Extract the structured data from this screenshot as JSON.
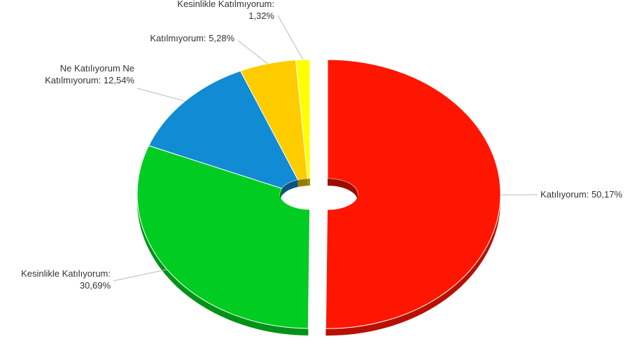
{
  "chart_data": {
    "type": "pie",
    "title": "",
    "donut": true,
    "three_d": true,
    "legend": "none",
    "slices": [
      {
        "name": "Katılıyorum",
        "value": 50.17,
        "label": "Katılıyorum: 50,17%",
        "color": "#ff1600",
        "exploded": true
      },
      {
        "name": "Kesinlikle Katılıyorum",
        "value": 30.69,
        "label": "Kesinlikle Katılıyorum:\n30,69%",
        "color": "#00cc22",
        "exploded": false
      },
      {
        "name": "Ne Katılıyorum Ne Katılmıyorum",
        "value": 12.54,
        "label": "Ne Katılıyorum Ne\nKatılmıyorum: 12,54%",
        "color": "#108bd4",
        "exploded": false
      },
      {
        "name": "Katılmıyorum",
        "value": 5.28,
        "label": "Katılmıyorum: 5,28%",
        "color": "#ffcc00",
        "exploded": false
      },
      {
        "name": "Kesinlikle Katılmıyorum",
        "value": 1.32,
        "label": "Kesinlikle Katılmıyorum:\n1,32%",
        "color": "#ffff00",
        "exploded": false
      }
    ]
  }
}
